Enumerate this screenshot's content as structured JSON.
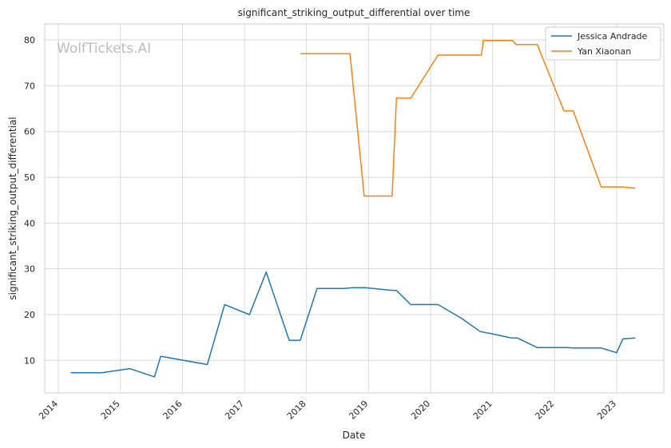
{
  "chart_data": {
    "type": "line",
    "title": "significant_striking_output_differential over time",
    "xlabel": "Date",
    "ylabel": "significant_striking_output_differential",
    "watermark": "WolfTickets.AI",
    "xlim": [
      2013.78,
      2023.76
    ],
    "ylim": [
      2.9,
      83.5
    ],
    "x_ticks": [
      2014,
      2015,
      2016,
      2017,
      2018,
      2019,
      2020,
      2021,
      2022,
      2023
    ],
    "y_ticks": [
      10,
      20,
      30,
      40,
      50,
      60,
      70,
      80
    ],
    "grid": true,
    "legend_position": "top-right",
    "series": [
      {
        "name": "Jessica Andrade",
        "color": "#1f77b4",
        "points": [
          [
            2014.2,
            7.3
          ],
          [
            2014.7,
            7.3
          ],
          [
            2015.15,
            8.2
          ],
          [
            2015.55,
            6.4
          ],
          [
            2015.65,
            10.9
          ],
          [
            2016.4,
            9.1
          ],
          [
            2016.68,
            22.2
          ],
          [
            2017.08,
            20.0
          ],
          [
            2017.35,
            29.3
          ],
          [
            2017.72,
            14.4
          ],
          [
            2017.9,
            14.4
          ],
          [
            2018.17,
            25.7
          ],
          [
            2018.6,
            25.7
          ],
          [
            2018.75,
            25.9
          ],
          [
            2018.95,
            25.9
          ],
          [
            2019.38,
            25.3
          ],
          [
            2019.45,
            25.3
          ],
          [
            2019.68,
            22.2
          ],
          [
            2020.12,
            22.2
          ],
          [
            2020.5,
            19.2
          ],
          [
            2020.8,
            16.3
          ],
          [
            2021.0,
            15.8
          ],
          [
            2021.3,
            14.9
          ],
          [
            2021.4,
            14.9
          ],
          [
            2021.72,
            12.8
          ],
          [
            2022.2,
            12.8
          ],
          [
            2022.3,
            12.7
          ],
          [
            2022.75,
            12.7
          ],
          [
            2023.0,
            11.7
          ],
          [
            2023.1,
            14.7
          ],
          [
            2023.3,
            14.9
          ]
        ]
      },
      {
        "name": "Yan Xiaonan",
        "color": "#ff7f0e",
        "points": [
          [
            2017.9,
            77.0
          ],
          [
            2018.7,
            77.0
          ],
          [
            2018.93,
            45.9
          ],
          [
            2019.38,
            45.9
          ],
          [
            2019.45,
            67.3
          ],
          [
            2019.68,
            67.3
          ],
          [
            2020.12,
            76.7
          ],
          [
            2020.82,
            76.7
          ],
          [
            2020.85,
            79.9
          ],
          [
            2021.32,
            79.9
          ],
          [
            2021.38,
            79.0
          ],
          [
            2021.72,
            79.0
          ],
          [
            2022.15,
            64.5
          ],
          [
            2022.3,
            64.5
          ],
          [
            2022.75,
            47.9
          ],
          [
            2023.1,
            47.9
          ],
          [
            2023.3,
            47.6
          ]
        ]
      }
    ]
  }
}
